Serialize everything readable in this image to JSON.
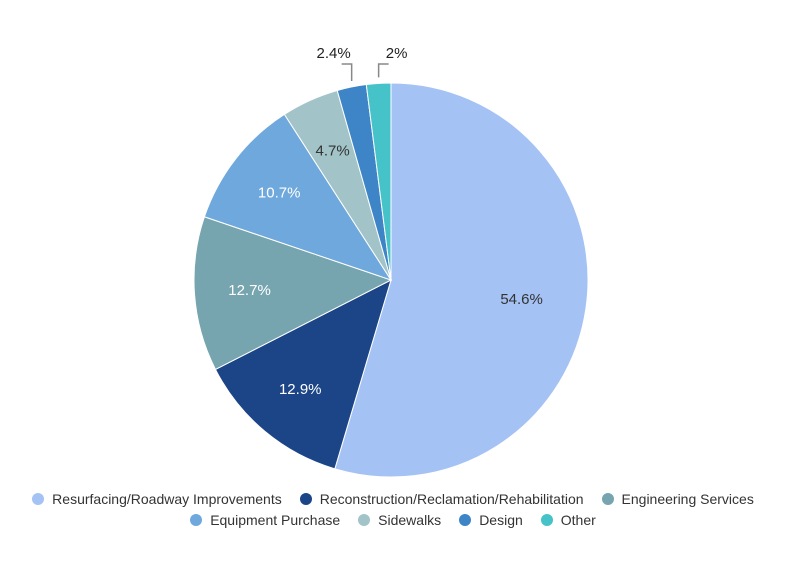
{
  "chart_data": {
    "type": "pie",
    "title": "",
    "slices": [
      {
        "label": "Resurfacing/Roadway Improvements",
        "value": 54.6,
        "display": "54.6%",
        "color": "#a4c2f4"
      },
      {
        "label": "Reconstruction/Reclamation/Rehabilitation",
        "value": 12.9,
        "display": "12.9%",
        "color": "#1c4587"
      },
      {
        "label": "Engineering Services",
        "value": 12.7,
        "display": "12.7%",
        "color": "#76a5af"
      },
      {
        "label": "Equipment Purchase",
        "value": 10.7,
        "display": "10.7%",
        "color": "#6fa8dc"
      },
      {
        "label": "Sidewalks",
        "value": 4.7,
        "display": "4.7%",
        "color": "#a2c4c9"
      },
      {
        "label": "Design",
        "value": 2.4,
        "display": "2.4%",
        "color": "#3d85c6"
      },
      {
        "label": "Other",
        "value": 2.0,
        "display": "2%",
        "color": "#45c3c9"
      }
    ],
    "legend_position": "bottom"
  }
}
